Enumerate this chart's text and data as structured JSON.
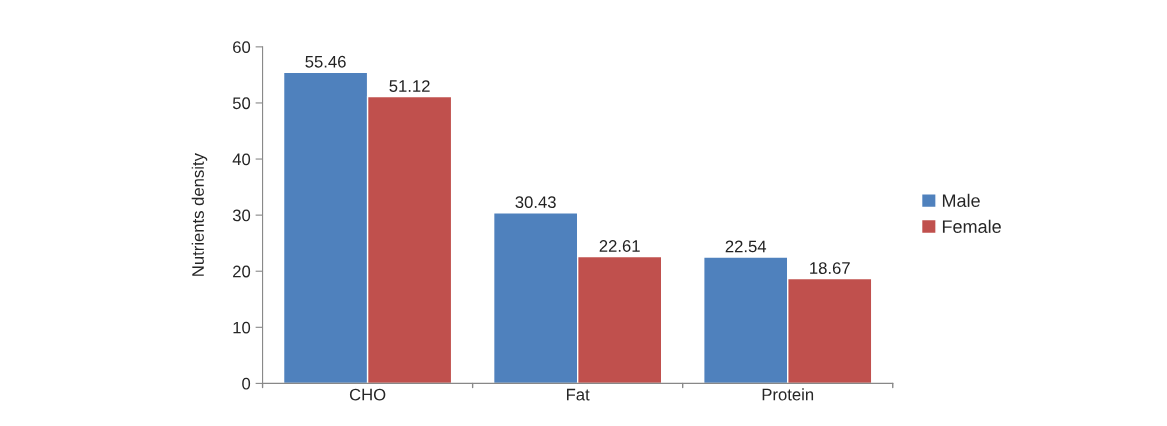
{
  "chart_data": {
    "type": "bar",
    "ylabel": "Nutrients density",
    "categories": [
      "CHO",
      "Fat",
      "Protein"
    ],
    "series": [
      {
        "name": "Male",
        "color": "#4f81bd",
        "values": [
          55.46,
          30.43,
          22.54
        ]
      },
      {
        "name": "Female",
        "color": "#c0504d",
        "values": [
          51.12,
          22.61,
          18.67
        ]
      }
    ],
    "ylim": [
      0,
      60
    ],
    "yticks": [
      0,
      10,
      20,
      30,
      40,
      50,
      60
    ],
    "grid": false,
    "legend": "right",
    "data_labels": true
  }
}
